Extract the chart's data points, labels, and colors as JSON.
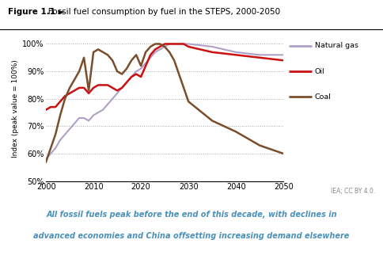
{
  "title_bold": "Figure 1.1 ►",
  "title_normal": "   Fossil fuel consumption by fuel in the STEPS, 2000-2050",
  "subtitle_line1": "All fossil fuels peak before the end of this decade, with declines in",
  "subtitle_line2": "advanced economies and China offsetting increasing demand elsewhere",
  "ylabel": "Index (peak value = 100%)",
  "credit": "IEA; CC BY 4.0.",
  "xlim": [
    2000,
    2050
  ],
  "ylim": [
    50,
    103
  ],
  "yticks": [
    50,
    60,
    70,
    80,
    90,
    100
  ],
  "xticks": [
    2000,
    2010,
    2020,
    2030,
    2040,
    2050
  ],
  "natural_gas": {
    "x": [
      2000,
      2001,
      2002,
      2003,
      2004,
      2005,
      2006,
      2007,
      2008,
      2009,
      2010,
      2011,
      2012,
      2013,
      2014,
      2015,
      2016,
      2017,
      2018,
      2019,
      2020,
      2021,
      2022,
      2023,
      2024,
      2025,
      2026,
      2027,
      2028,
      2029,
      2030,
      2035,
      2040,
      2045,
      2050
    ],
    "y": [
      58,
      60,
      62,
      65,
      67,
      69,
      71,
      73,
      73,
      72,
      74,
      75,
      76,
      78,
      80,
      82,
      84,
      86,
      88,
      90,
      91,
      93,
      95,
      97,
      98,
      99,
      100,
      100,
      100,
      100,
      100,
      99,
      97,
      96,
      96
    ],
    "color": "#b0a0c8",
    "label": "Natural gas",
    "linewidth": 1.5
  },
  "oil": {
    "x": [
      2000,
      2001,
      2002,
      2003,
      2004,
      2005,
      2006,
      2007,
      2008,
      2009,
      2010,
      2011,
      2012,
      2013,
      2014,
      2015,
      2016,
      2017,
      2018,
      2019,
      2020,
      2021,
      2022,
      2023,
      2024,
      2025,
      2026,
      2027,
      2028,
      2029,
      2030,
      2035,
      2040,
      2045,
      2050
    ],
    "y": [
      76,
      77,
      77,
      79,
      81,
      82,
      83,
      84,
      84,
      82,
      84,
      85,
      85,
      85,
      84,
      83,
      84,
      86,
      88,
      89,
      88,
      92,
      96,
      98,
      99,
      100,
      100,
      100,
      100,
      100,
      99,
      97,
      96,
      95,
      94
    ],
    "color": "#cc1111",
    "label": "Oil",
    "linewidth": 1.8
  },
  "coal": {
    "x": [
      2000,
      2001,
      2002,
      2003,
      2004,
      2005,
      2006,
      2007,
      2008,
      2009,
      2010,
      2011,
      2012,
      2013,
      2014,
      2015,
      2016,
      2017,
      2018,
      2019,
      2020,
      2021,
      2022,
      2023,
      2024,
      2025,
      2026,
      2027,
      2028,
      2029,
      2030,
      2035,
      2040,
      2045,
      2050
    ],
    "y": [
      57,
      62,
      67,
      74,
      80,
      84,
      87,
      90,
      95,
      83,
      97,
      98,
      97,
      96,
      94,
      90,
      89,
      91,
      94,
      96,
      92,
      97,
      99,
      100,
      100,
      99,
      97,
      94,
      89,
      84,
      79,
      72,
      68,
      63,
      60
    ],
    "color": "#7a4e2d",
    "label": "Coal",
    "linewidth": 1.8
  },
  "subtitle_color": "#4a90b8",
  "title_color": "#000000",
  "credit_color": "#888888"
}
